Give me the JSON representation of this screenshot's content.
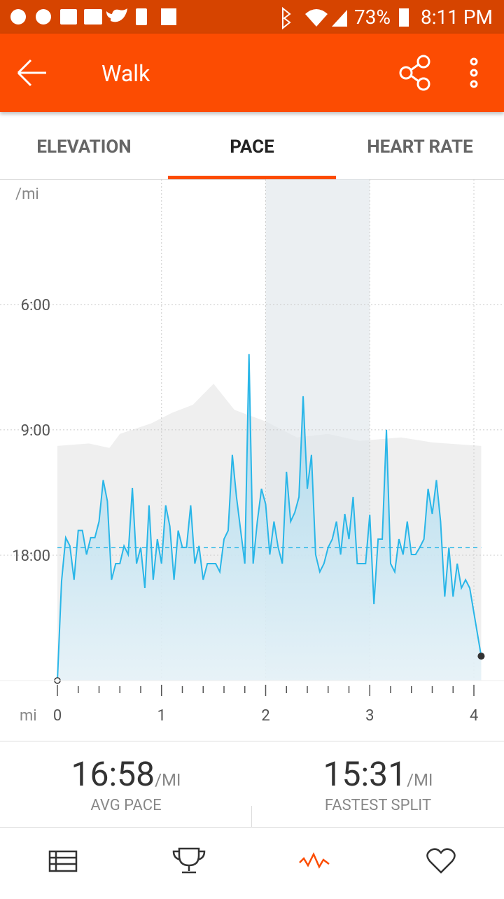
{
  "status_bar": {
    "battery": "73%",
    "time": "8:11 PM"
  },
  "app_bar": {
    "title": "Walk"
  },
  "tabs": [
    "ELEVATION",
    "PACE",
    "HEART RATE"
  ],
  "chart_data": {
    "type": "line",
    "y_label": "/mi",
    "x_label": "mi",
    "x": [
      0,
      0.04,
      0.08,
      0.12,
      0.16,
      0.2,
      0.24,
      0.28,
      0.32,
      0.36,
      0.4,
      0.44,
      0.48,
      0.52,
      0.56,
      0.6,
      0.64,
      0.68,
      0.72,
      0.76,
      0.8,
      0.84,
      0.88,
      0.92,
      0.96,
      1,
      1.04,
      1.08,
      1.12,
      1.16,
      1.2,
      1.24,
      1.28,
      1.32,
      1.36,
      1.4,
      1.44,
      1.48,
      1.52,
      1.56,
      1.6,
      1.64,
      1.68,
      1.72,
      1.76,
      1.8,
      1.84,
      1.88,
      1.92,
      1.96,
      2,
      2.04,
      2.08,
      2.12,
      2.16,
      2.2,
      2.24,
      2.28,
      2.32,
      2.36,
      2.4,
      2.44,
      2.48,
      2.52,
      2.56,
      2.6,
      2.64,
      2.68,
      2.72,
      2.76,
      2.8,
      2.84,
      2.88,
      2.92,
      2.96,
      3,
      3.04,
      3.08,
      3.12,
      3.16,
      3.2,
      3.24,
      3.28,
      3.32,
      3.36,
      3.4,
      3.44,
      3.48,
      3.52,
      3.56,
      3.6,
      3.64,
      3.68,
      3.72,
      3.76,
      3.8,
      3.84,
      3.88,
      3.92,
      3.96,
      4.07
    ],
    "series": [
      {
        "color": "#29b6e8",
        "values": [
          0,
          2.64,
          3.8,
          3.58,
          2.68,
          3.99,
          3.99,
          3.35,
          3.8,
          3.8,
          4.23,
          5.33,
          4.77,
          2.68,
          3.11,
          3.11,
          3.58,
          3.35,
          5.12,
          3.11,
          3.54,
          2.46,
          4.66,
          2.68,
          3.76,
          3.11,
          4.66,
          4.1,
          2.68,
          3.99,
          3.54,
          3.54,
          4.66,
          3.11,
          3.58,
          2.68,
          3.11,
          3.11,
          3.11,
          2.89,
          3.76,
          3.99,
          6.0,
          4.88,
          3.99,
          3.11,
          8.68,
          3.11,
          4.23,
          5.1,
          4.69,
          3.35,
          4.23,
          3.54,
          3.11,
          5.55,
          4.23,
          4.47,
          4.88,
          7.56,
          5.1,
          6.0,
          3.35,
          2.89,
          3.11,
          3.54,
          3.76,
          4.23,
          3.35,
          4.43,
          3.76,
          4.88,
          3.11,
          3.11,
          3.11,
          4.41,
          2.03,
          3.76,
          3.76,
          6.67,
          3.11,
          2.89,
          3.76,
          3.35,
          4.23,
          3.35,
          3.35,
          3.54,
          3.76,
          5.1,
          4.43,
          5.33,
          4.23,
          2.23,
          3.54,
          2.23,
          3.11,
          2.46,
          2.68,
          2.46,
          0.65
        ]
      },
      {
        "color": "#efefef",
        "axis": "y2",
        "x": [
          0,
          0.3,
          0.5,
          0.6,
          0.9,
          1.1,
          1.3,
          1.5,
          1.7,
          2,
          2.3,
          2.6,
          2.9,
          3.3,
          3.6,
          4.07
        ],
        "values": [
          46.8,
          47.3,
          46.4,
          49.2,
          51.3,
          53.4,
          55,
          59.2,
          54,
          51.7,
          48.5,
          49.2,
          47.8,
          48.5,
          47.5,
          46.8
        ]
      }
    ],
    "avg_line": 3.536,
    "highlight": [
      2,
      3
    ],
    "xlim": [
      0,
      4.07
    ],
    "ylim": [
      0,
      13.33
    ],
    "y2lim": [
      0,
      100
    ],
    "xticks": [
      0,
      1,
      2,
      3,
      4
    ],
    "xminorticks": [
      0.2,
      0.4,
      0.6,
      0.8,
      1.2,
      1.4,
      1.6,
      1.8,
      2.2,
      2.4,
      2.6,
      2.8,
      3.2,
      3.4,
      3.6,
      3.8
    ],
    "yticks": [
      {
        "value": 10,
        "label": "6:00"
      },
      {
        "value": 6.667,
        "label": "9:00"
      },
      {
        "value": 3.333,
        "label": "18:00"
      }
    ],
    "grid": true
  },
  "stats": [
    {
      "value": "16:58",
      "unit": "/MI",
      "label": "AVG PACE"
    },
    {
      "value": "15:31",
      "unit": "/MI",
      "label": "FASTEST SPLIT"
    }
  ]
}
